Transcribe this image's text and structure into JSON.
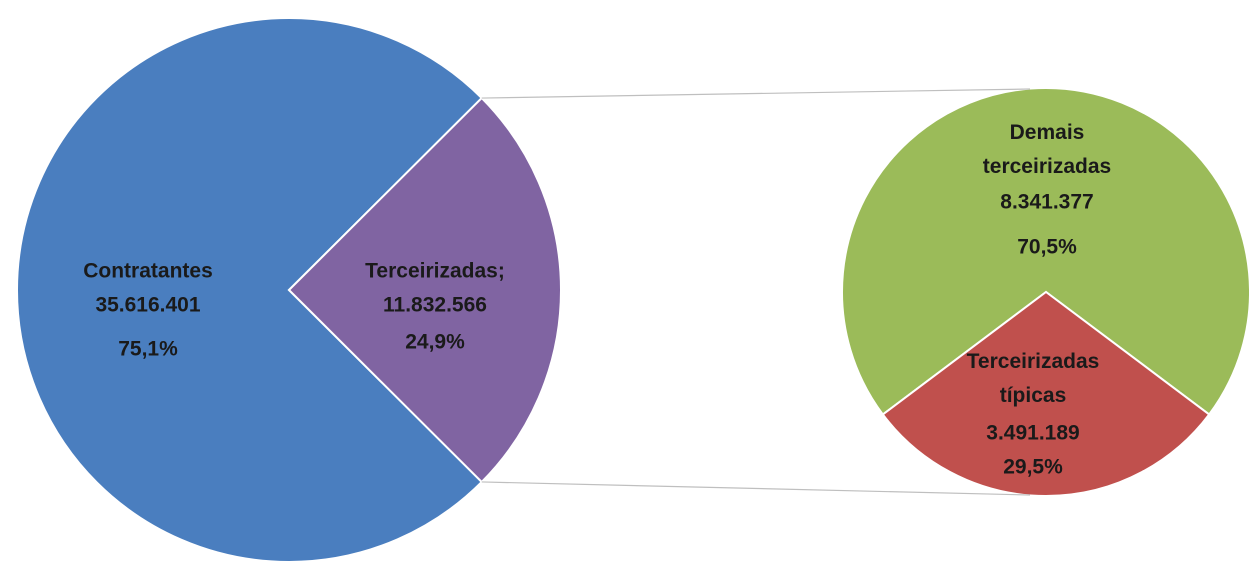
{
  "chart_data": [
    {
      "type": "pie",
      "categories": [
        "Contratantes",
        "Terceirizadas;"
      ],
      "values": [
        35616401,
        11832566
      ],
      "value_labels": [
        "35.616.401",
        "11.832.566"
      ],
      "percents": [
        75.1,
        24.9
      ],
      "percent_labels": [
        "75,1%",
        "24,9%"
      ],
      "colors": [
        "#4a7ebf",
        "#8064a2"
      ]
    },
    {
      "type": "pie",
      "categories": [
        "Demais terceirizadas",
        "Terceirizadas típicas"
      ],
      "values": [
        8341377,
        3491189
      ],
      "value_labels": [
        "8.341.377",
        "3.491.189"
      ],
      "percents": [
        70.5,
        29.5
      ],
      "percent_labels": [
        "70,5%",
        "29,5%"
      ],
      "colors": [
        "#9bbb59",
        "#c0504d"
      ]
    }
  ]
}
